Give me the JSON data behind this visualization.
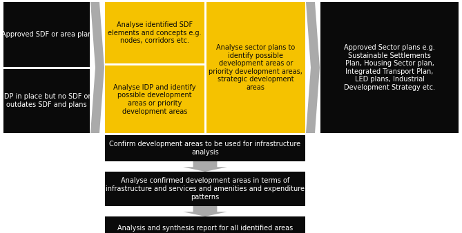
{
  "bg_color": "#ffffff",
  "black": "#0a0a0a",
  "gold": "#F5C200",
  "white": "#ffffff",
  "arrow_color": "#aaaaaa",
  "boxes": {
    "left_top": "Approved SDF or area plan",
    "left_bot": "IDP in place but no SDF or\noutdates SDF and plans",
    "mid_top_left": "Analyse identified SDF\nelements and concepts e.g.\nnodes, corridors etc.",
    "mid_top_right": "Analyse sector plans to\nidentify possible\ndevelopment areas or\npriority development areas,\nstrategic development\nareas",
    "mid_bot_left": "Analyse IDP and identify\npossible development\nareas or priority\ndevelopment areas",
    "right": "Approved Sector plans e.g.\nSustainable Settlements\nPlan, Housing Sector plan,\nIntegrated Transport Plan,\nLED plans, Industrial\nDevelopment Strategy etc.",
    "bottom1": "Confirm development areas to be used for infrastructure\nanalysis",
    "bottom2": "Analyse confirmed development areas in terms of\ninfrastructure and services and amenities and expenditure\npatterns",
    "bottom3": "Analysis and synthesis report for all identified areas"
  },
  "font_size": 7.0
}
